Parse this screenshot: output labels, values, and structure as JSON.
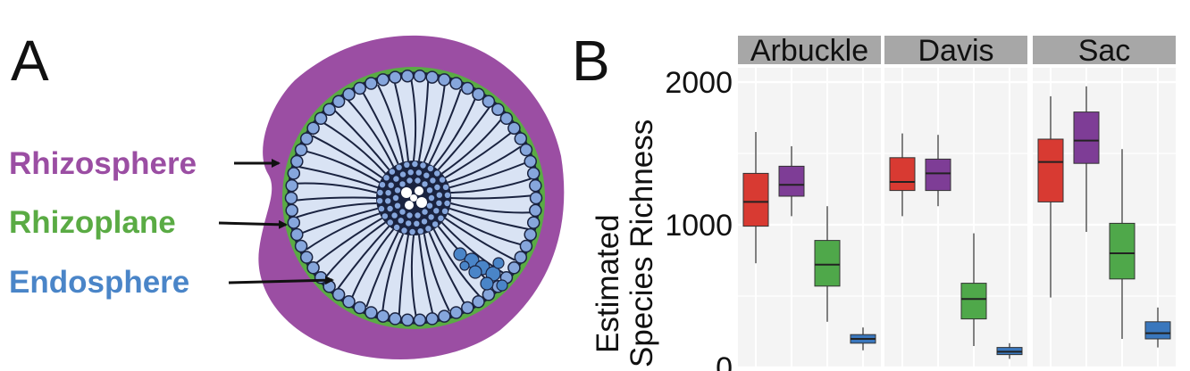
{
  "panel_a": {
    "letter": "A",
    "labels": [
      {
        "text": "Rhizosphere",
        "color": "#9b4ea3"
      },
      {
        "text": "Rhizoplane",
        "color": "#5aab44"
      },
      {
        "text": "Endosphere",
        "color": "#4a85c8"
      }
    ],
    "colors": {
      "rhizosphere": "#9b4ea3",
      "rhizoplane": "#5aab44",
      "endosphere": "#4a85c8",
      "cortex": "#d9e3f4"
    }
  },
  "panel_b": {
    "letter": "B"
  },
  "chart_data": {
    "type": "box",
    "ylabel": "Estimated Species Richness",
    "y_ticks": [
      0,
      1000,
      2000
    ],
    "ylim": [
      0,
      2100
    ],
    "facets": [
      "Arbuckle",
      "Davis",
      "Sac"
    ],
    "groups": [
      {
        "color": "#d83a32"
      },
      {
        "color": "#7e3d96"
      },
      {
        "color": "#4fa84a"
      },
      {
        "color": "#3a77bd"
      }
    ],
    "boxes": [
      [
        {
          "min": 730,
          "q1": 990,
          "median": 1160,
          "q3": 1360,
          "max": 1650
        },
        {
          "min": 1060,
          "q1": 1200,
          "median": 1280,
          "q3": 1410,
          "max": 1550
        },
        {
          "min": 320,
          "q1": 570,
          "median": 720,
          "q3": 890,
          "max": 1130
        },
        {
          "min": 120,
          "q1": 170,
          "median": 200,
          "q3": 230,
          "max": 280
        }
      ],
      [
        {
          "min": 1060,
          "q1": 1240,
          "median": 1300,
          "q3": 1470,
          "max": 1640
        },
        {
          "min": 1130,
          "q1": 1240,
          "median": 1360,
          "q3": 1460,
          "max": 1630
        },
        {
          "min": 150,
          "q1": 340,
          "median": 480,
          "q3": 590,
          "max": 940
        },
        {
          "min": 60,
          "q1": 90,
          "median": 110,
          "q3": 140,
          "max": 170
        }
      ],
      [
        {
          "min": 490,
          "q1": 1160,
          "median": 1440,
          "q3": 1600,
          "max": 1900
        },
        {
          "min": 950,
          "q1": 1430,
          "median": 1590,
          "q3": 1790,
          "max": 1970
        },
        {
          "min": 200,
          "q1": 620,
          "median": 800,
          "q3": 1010,
          "max": 1530
        },
        {
          "min": 140,
          "q1": 200,
          "median": 240,
          "q3": 320,
          "max": 420
        }
      ]
    ]
  }
}
